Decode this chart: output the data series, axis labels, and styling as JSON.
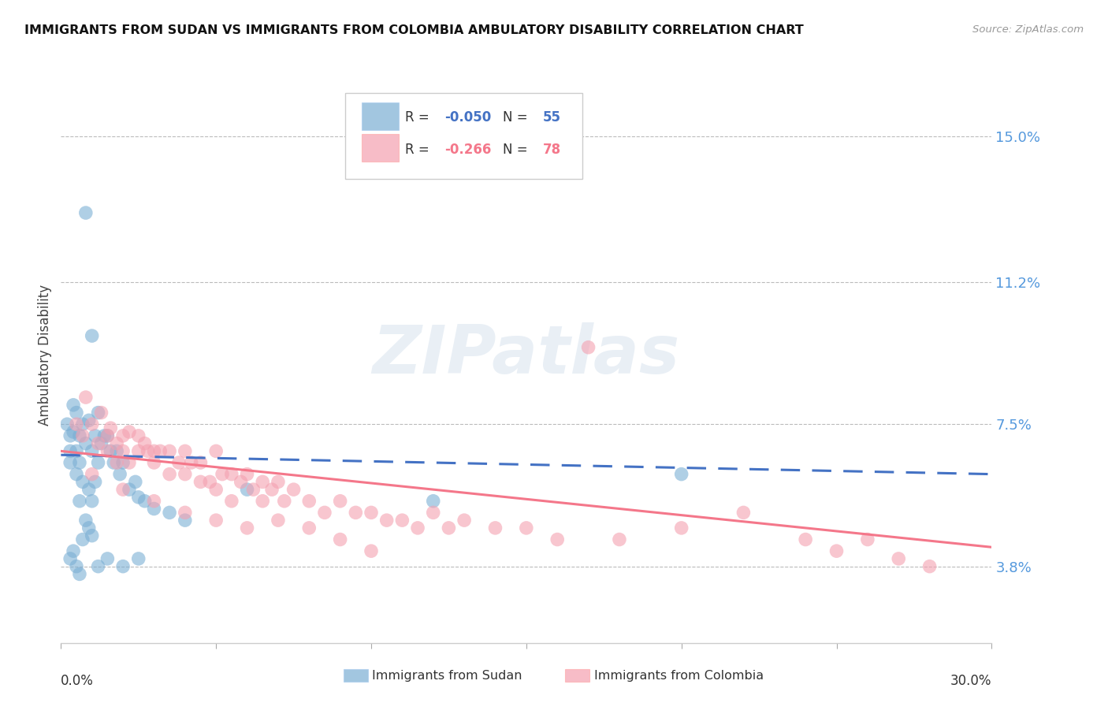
{
  "title": "IMMIGRANTS FROM SUDAN VS IMMIGRANTS FROM COLOMBIA AMBULATORY DISABILITY CORRELATION CHART",
  "source": "Source: ZipAtlas.com",
  "ylabel": "Ambulatory Disability",
  "yticks": [
    0.038,
    0.075,
    0.112,
    0.15
  ],
  "ytick_labels": [
    "3.8%",
    "7.5%",
    "11.2%",
    "15.0%"
  ],
  "xlim": [
    0.0,
    0.3
  ],
  "ylim": [
    0.018,
    0.168
  ],
  "sudan_R": -0.05,
  "sudan_N": 55,
  "colombia_R": -0.266,
  "colombia_N": 78,
  "sudan_color": "#7BAFD4",
  "colombia_color": "#F4A0B0",
  "sudan_line_color": "#4472C4",
  "colombia_line_color": "#F4778A",
  "watermark": "ZIPatlas",
  "legend_sudan_label": "Immigrants from Sudan",
  "legend_colombia_label": "Immigrants from Colombia",
  "sudan_points_x": [
    0.002,
    0.003,
    0.003,
    0.003,
    0.004,
    0.004,
    0.005,
    0.005,
    0.005,
    0.006,
    0.006,
    0.006,
    0.007,
    0.007,
    0.008,
    0.008,
    0.009,
    0.009,
    0.01,
    0.01,
    0.01,
    0.011,
    0.011,
    0.012,
    0.012,
    0.013,
    0.014,
    0.015,
    0.016,
    0.017,
    0.018,
    0.019,
    0.02,
    0.022,
    0.024,
    0.025,
    0.027,
    0.03,
    0.035,
    0.04,
    0.003,
    0.004,
    0.005,
    0.006,
    0.007,
    0.008,
    0.009,
    0.01,
    0.012,
    0.015,
    0.02,
    0.025,
    0.06,
    0.12,
    0.2
  ],
  "sudan_points_y": [
    0.075,
    0.072,
    0.068,
    0.065,
    0.08,
    0.073,
    0.078,
    0.068,
    0.062,
    0.072,
    0.065,
    0.055,
    0.075,
    0.06,
    0.13,
    0.07,
    0.076,
    0.058,
    0.098,
    0.068,
    0.055,
    0.072,
    0.06,
    0.078,
    0.065,
    0.07,
    0.072,
    0.072,
    0.068,
    0.065,
    0.068,
    0.062,
    0.065,
    0.058,
    0.06,
    0.056,
    0.055,
    0.053,
    0.052,
    0.05,
    0.04,
    0.042,
    0.038,
    0.036,
    0.045,
    0.05,
    0.048,
    0.046,
    0.038,
    0.04,
    0.038,
    0.04,
    0.058,
    0.055,
    0.062
  ],
  "colombia_points_x": [
    0.005,
    0.007,
    0.008,
    0.01,
    0.012,
    0.013,
    0.015,
    0.015,
    0.016,
    0.018,
    0.018,
    0.02,
    0.02,
    0.022,
    0.022,
    0.025,
    0.025,
    0.027,
    0.028,
    0.03,
    0.03,
    0.032,
    0.035,
    0.035,
    0.038,
    0.04,
    0.04,
    0.042,
    0.045,
    0.045,
    0.048,
    0.05,
    0.05,
    0.052,
    0.055,
    0.055,
    0.058,
    0.06,
    0.062,
    0.065,
    0.065,
    0.068,
    0.07,
    0.072,
    0.075,
    0.08,
    0.085,
    0.09,
    0.095,
    0.1,
    0.105,
    0.11,
    0.115,
    0.12,
    0.125,
    0.13,
    0.14,
    0.15,
    0.16,
    0.17,
    0.18,
    0.2,
    0.22,
    0.24,
    0.25,
    0.26,
    0.27,
    0.28,
    0.01,
    0.02,
    0.03,
    0.04,
    0.05,
    0.06,
    0.07,
    0.08,
    0.09,
    0.1
  ],
  "colombia_points_y": [
    0.075,
    0.072,
    0.082,
    0.075,
    0.07,
    0.078,
    0.072,
    0.068,
    0.074,
    0.07,
    0.065,
    0.072,
    0.068,
    0.073,
    0.065,
    0.072,
    0.068,
    0.07,
    0.068,
    0.068,
    0.065,
    0.068,
    0.068,
    0.062,
    0.065,
    0.068,
    0.062,
    0.065,
    0.065,
    0.06,
    0.06,
    0.068,
    0.058,
    0.062,
    0.062,
    0.055,
    0.06,
    0.062,
    0.058,
    0.06,
    0.055,
    0.058,
    0.06,
    0.055,
    0.058,
    0.055,
    0.052,
    0.055,
    0.052,
    0.052,
    0.05,
    0.05,
    0.048,
    0.052,
    0.048,
    0.05,
    0.048,
    0.048,
    0.045,
    0.095,
    0.045,
    0.048,
    0.052,
    0.045,
    0.042,
    0.045,
    0.04,
    0.038,
    0.062,
    0.058,
    0.055,
    0.052,
    0.05,
    0.048,
    0.05,
    0.048,
    0.045,
    0.042
  ]
}
